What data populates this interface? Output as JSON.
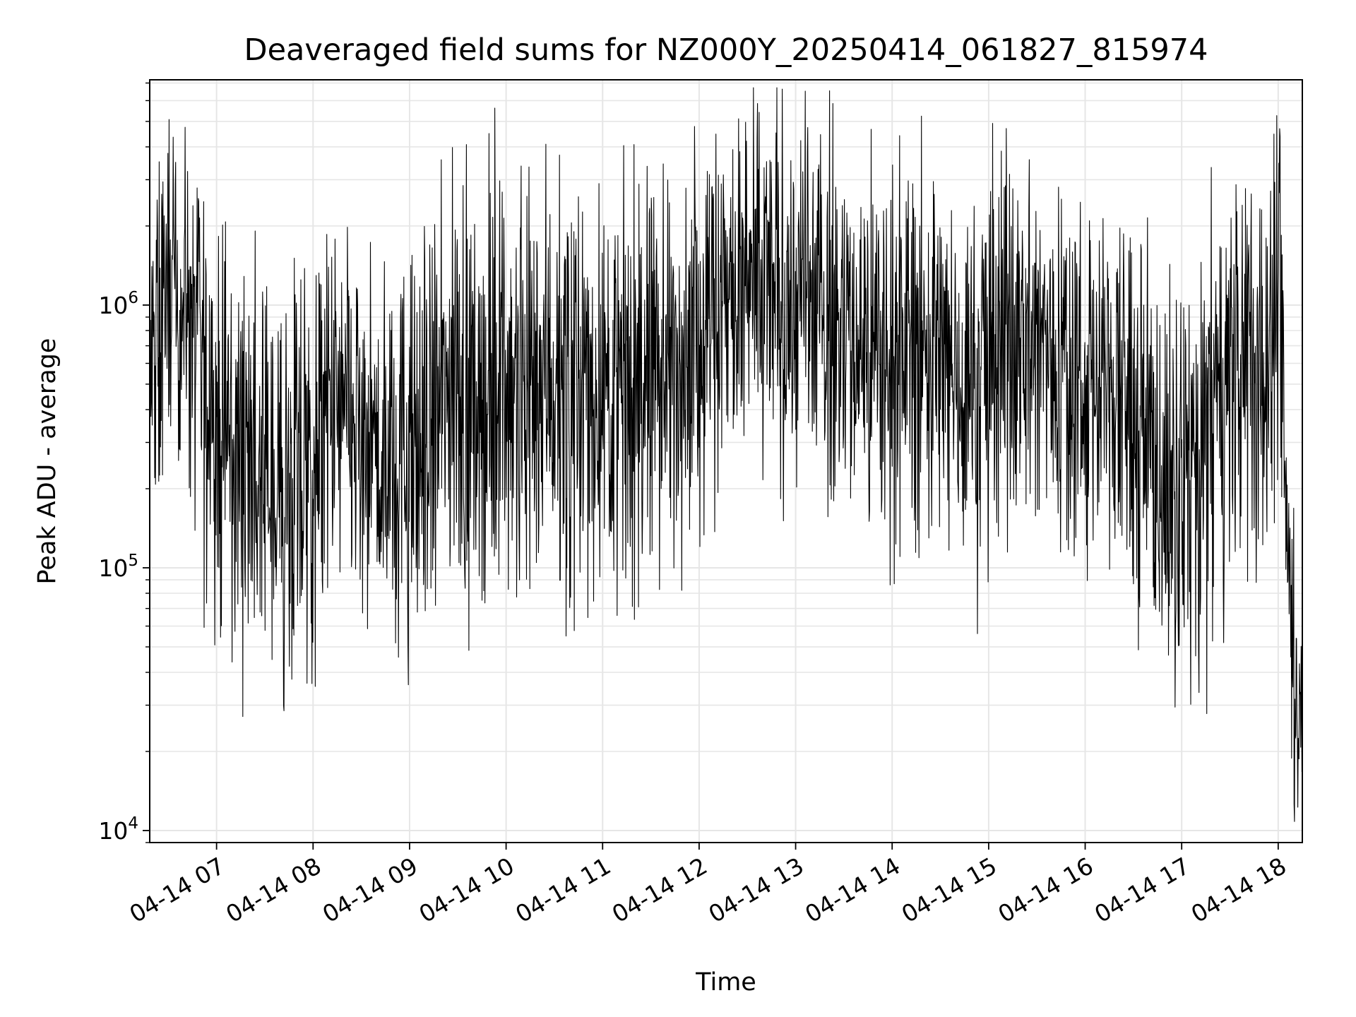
{
  "chart_data": {
    "type": "line",
    "title": "Deaveraged field sums for NZ000Y_20250414_061827_815974",
    "xlabel": "Time",
    "ylabel": "Peak ADU - average",
    "yscale": "log",
    "ylim": [
      9000,
      7200000
    ],
    "xlim": [
      "2025-04-14T06:18:27",
      "2025-04-14T18:15:00"
    ],
    "grid": true,
    "line_color": "#000000",
    "x_ticks": [
      {
        "value": "2025-04-14T07:00",
        "label": "04-14 07"
      },
      {
        "value": "2025-04-14T08:00",
        "label": "04-14 08"
      },
      {
        "value": "2025-04-14T09:00",
        "label": "04-14 09"
      },
      {
        "value": "2025-04-14T10:00",
        "label": "04-14 10"
      },
      {
        "value": "2025-04-14T11:00",
        "label": "04-14 11"
      },
      {
        "value": "2025-04-14T12:00",
        "label": "04-14 12"
      },
      {
        "value": "2025-04-14T13:00",
        "label": "04-14 13"
      },
      {
        "value": "2025-04-14T14:00",
        "label": "04-14 14"
      },
      {
        "value": "2025-04-14T15:00",
        "label": "04-14 15"
      },
      {
        "value": "2025-04-14T16:00",
        "label": "04-14 16"
      },
      {
        "value": "2025-04-14T17:00",
        "label": "04-14 17"
      },
      {
        "value": "2025-04-14T18:00",
        "label": "04-14 18"
      }
    ],
    "y_ticks": [
      {
        "value": 10000,
        "base": "10",
        "exp": "4"
      },
      {
        "value": 100000,
        "base": "10",
        "exp": "5"
      },
      {
        "value": 1000000,
        "base": "10",
        "exp": "6"
      }
    ],
    "series": [
      {
        "x": [
          "2025-04-14T06:18",
          "2025-04-14T06:25",
          "2025-04-14T06:30",
          "2025-04-14T06:35",
          "2025-04-14T06:40",
          "2025-04-14T06:45",
          "2025-04-14T06:50",
          "2025-04-14T06:55",
          "2025-04-14T07:00",
          "2025-04-14T07:10",
          "2025-04-14T07:20",
          "2025-04-14T07:30",
          "2025-04-14T07:40",
          "2025-04-14T07:50",
          "2025-04-14T08:00",
          "2025-04-14T08:10",
          "2025-04-14T08:20",
          "2025-04-14T08:30",
          "2025-04-14T08:40",
          "2025-04-14T08:50",
          "2025-04-14T09:00",
          "2025-04-14T09:10",
          "2025-04-14T09:20",
          "2025-04-14T09:30",
          "2025-04-14T09:40",
          "2025-04-14T09:50",
          "2025-04-14T10:00",
          "2025-04-14T10:10",
          "2025-04-14T10:20",
          "2025-04-14T10:30",
          "2025-04-14T10:40",
          "2025-04-14T10:50",
          "2025-04-14T11:00",
          "2025-04-14T11:10",
          "2025-04-14T11:20",
          "2025-04-14T11:30",
          "2025-04-14T11:40",
          "2025-04-14T11:50",
          "2025-04-14T12:00",
          "2025-04-14T12:10",
          "2025-04-14T12:20",
          "2025-04-14T12:30",
          "2025-04-14T12:40",
          "2025-04-14T12:50",
          "2025-04-14T13:00",
          "2025-04-14T13:10",
          "2025-04-14T13:20",
          "2025-04-14T13:30",
          "2025-04-14T13:40",
          "2025-04-14T13:50",
          "2025-04-14T14:00",
          "2025-04-14T14:10",
          "2025-04-14T14:20",
          "2025-04-14T14:30",
          "2025-04-14T14:40",
          "2025-04-14T14:50",
          "2025-04-14T15:00",
          "2025-04-14T15:10",
          "2025-04-14T15:20",
          "2025-04-14T15:30",
          "2025-04-14T15:40",
          "2025-04-14T15:50",
          "2025-04-14T16:00",
          "2025-04-14T16:10",
          "2025-04-14T16:20",
          "2025-04-14T16:30",
          "2025-04-14T16:40",
          "2025-04-14T16:50",
          "2025-04-14T17:00",
          "2025-04-14T17:10",
          "2025-04-14T17:20",
          "2025-04-14T17:30",
          "2025-04-14T17:40",
          "2025-04-14T17:50",
          "2025-04-14T18:00",
          "2025-04-14T18:03",
          "2025-04-14T18:06",
          "2025-04-14T18:09",
          "2025-04-14T18:12",
          "2025-04-14T18:15"
        ],
        "y": [
          500000,
          800000,
          1500000,
          900000,
          1200000,
          700000,
          600000,
          400000,
          350000,
          300000,
          250000,
          200000,
          180000,
          200000,
          250000,
          400000,
          350000,
          300000,
          250000,
          300000,
          250000,
          300000,
          400000,
          500000,
          450000,
          500000,
          550000,
          500000,
          600000,
          550000,
          500000,
          450000,
          500000,
          450000,
          500000,
          600000,
          550000,
          700000,
          900000,
          1000000,
          1100000,
          1000000,
          1200000,
          1100000,
          1000000,
          1000000,
          900000,
          800000,
          700000,
          650000,
          700000,
          750000,
          700000,
          600000,
          550000,
          500000,
          650000,
          700000,
          750000,
          700000,
          650000,
          600000,
          550000,
          500000,
          450000,
          400000,
          300000,
          200000,
          180000,
          250000,
          400000,
          500000,
          600000,
          700000,
          800000,
          600000,
          100000,
          60000,
          30000,
          40000
        ],
        "spread": [
          2.5,
          3.5,
          2.5,
          2.5,
          3,
          3,
          3.5,
          3.5,
          3.5,
          3.5,
          3.5,
          3.5,
          3.5,
          3.5,
          3.5,
          3.2,
          3.2,
          3.2,
          3.2,
          3.2,
          3.5,
          3.5,
          3.5,
          3.5,
          3.5,
          3.5,
          3.5,
          3.5,
          3.5,
          3.5,
          3.5,
          3.5,
          3.5,
          3.5,
          3.5,
          3.5,
          3.2,
          3.2,
          3.2,
          3.2,
          3.2,
          3.2,
          3.2,
          3.2,
          3.2,
          3.2,
          3.2,
          3.2,
          3.2,
          3.2,
          3.2,
          3.2,
          3.2,
          3.2,
          3.2,
          3.2,
          3.2,
          3.2,
          3.2,
          3.2,
          3.2,
          3.2,
          3.2,
          3.2,
          3.2,
          3.2,
          3.5,
          3.5,
          3.5,
          3.5,
          3.5,
          3.5,
          3.5,
          3.5,
          3.5,
          3,
          2.5,
          2.5,
          2.5,
          2.5
        ]
      }
    ]
  }
}
